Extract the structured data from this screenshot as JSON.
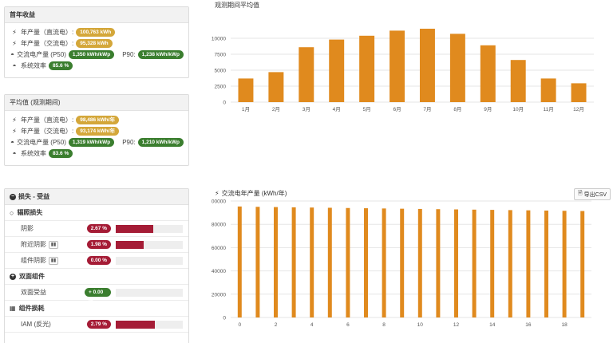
{
  "first_year": {
    "title": "首年收益",
    "dc_label": "年产量（直流电）:",
    "dc_value": "100,763 kWh",
    "ac_label": "年产量（交流电）:",
    "ac_value": "95,328 kWh",
    "yield_label": "交流电产量 (P50)",
    "yield_p50": "1,350 kWh/kWp",
    "p90_label": "P90:",
    "yield_p90": "1,238 kWh/kWp",
    "eff_label": "系统效率",
    "eff_value": "85.6 %"
  },
  "average": {
    "title": "平均值 (观测期间)",
    "dc_label": "年产量（直流电）:",
    "dc_value": "98,486 kWh/年",
    "ac_label": "年产量（交流电）:",
    "ac_value": "93,174 kWh/年",
    "yield_label": "交流电产量 (P50)",
    "yield_p50": "1,319 kWh/kWp",
    "p90_label": "P90:",
    "yield_p90": "1,210 kWh/kWp",
    "eff_label": "系统效率",
    "eff_value": "83.6 %"
  },
  "losses": {
    "title": "损失 - 受益",
    "irradiance_title": "辐照损失",
    "rows1": [
      {
        "label": "阴影",
        "value": "2.67 %",
        "fill": 0.56,
        "chart_icon": false,
        "color": "#a51c36"
      },
      {
        "label": "附近阴影",
        "value": "1.98 %",
        "fill": 0.42,
        "chart_icon": true,
        "color": "#a51c36"
      },
      {
        "label": "组件阴影",
        "value": "0.00 %",
        "fill": 0.0,
        "chart_icon": true,
        "color": "#a51c36"
      }
    ],
    "bifacial_title": "双面组件",
    "rows2": [
      {
        "label": "双面受益",
        "value": "+ 0.00 %",
        "fill": 0.0,
        "chart_icon": false,
        "color": "#3b7e2f"
      }
    ],
    "module_title": "组件损耗",
    "rows3": [
      {
        "label": "IAM (反光)",
        "value": "2.79 %",
        "fill": 0.58,
        "chart_icon": false,
        "color": "#a51c36"
      }
    ]
  },
  "chart_data": [
    {
      "type": "bar",
      "title": "观测期间平均值",
      "categories": [
        "1月",
        "2月",
        "3月",
        "4月",
        "5月",
        "6月",
        "7月",
        "8月",
        "9月",
        "10月",
        "11月",
        "12月"
      ],
      "values": [
        3700,
        4700,
        8600,
        9800,
        10400,
        11200,
        11500,
        10700,
        8900,
        6600,
        3700,
        2950
      ],
      "ylim": [
        0,
        12500
      ],
      "yticks": [
        0,
        2500,
        5000,
        7500,
        10000
      ],
      "color": "#e08a1e",
      "grid": true
    },
    {
      "type": "bar",
      "title": "交流电年产量 (kWh/年)",
      "export_label": "导出CSV",
      "categories": [
        "0",
        "1",
        "2",
        "3",
        "4",
        "5",
        "6",
        "7",
        "8",
        "9",
        "10",
        "11",
        "12",
        "13",
        "14",
        "15",
        "16",
        "17",
        "18",
        "19"
      ],
      "xticks": [
        "0",
        "2",
        "4",
        "6",
        "8",
        "10",
        "12",
        "14",
        "16",
        "18"
      ],
      "values": [
        95300,
        95000,
        94800,
        94600,
        94400,
        94200,
        94000,
        93800,
        93600,
        93400,
        93200,
        93000,
        92800,
        92600,
        92400,
        92200,
        92000,
        91800,
        91600,
        91400
      ],
      "ylim": [
        0,
        100000
      ],
      "yticks": [
        0,
        20000,
        40000,
        60000,
        80000,
        100000
      ],
      "color": "#e08a1e",
      "grid": true
    }
  ]
}
